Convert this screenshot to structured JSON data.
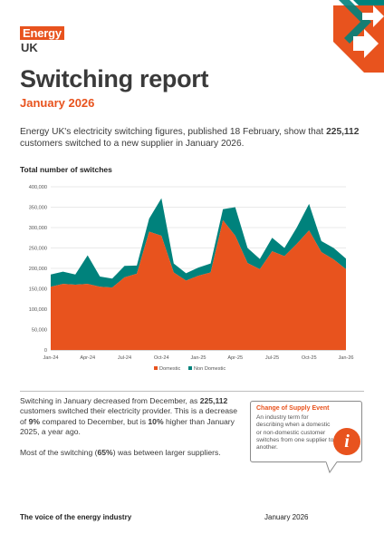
{
  "logo": {
    "top": "Energy",
    "bottom": "UK"
  },
  "title": "Switching report",
  "subtitle": "January 2026",
  "intro": {
    "p1": "Energy UK's electricity switching figures, published 18 February, show that ",
    "num": "225,112",
    "p2": " customers switched to a new supplier in January 2026."
  },
  "chart_title": "Total number of switches",
  "chart_data": {
    "type": "area",
    "stacked": true,
    "x_tick_labels": [
      "Jan-24",
      "Apr-24",
      "Jul-24",
      "Oct-24",
      "Jan-25",
      "Apr-25",
      "Jul-25",
      "Oct-25",
      "Jan-26"
    ],
    "y_tick_labels": [
      "0",
      "50,000",
      "100,000",
      "150,000",
      "200,000",
      "250,000",
      "300,000",
      "350,000",
      "400,000"
    ],
    "ylim": [
      0,
      400000
    ],
    "x": [
      "Jan-24",
      "Feb-24",
      "Mar-24",
      "Apr-24",
      "May-24",
      "Jun-24",
      "Jul-24",
      "Aug-24",
      "Sep-24",
      "Oct-24",
      "Nov-24",
      "Dec-24",
      "Jan-25",
      "Feb-25",
      "Mar-25",
      "Apr-25",
      "May-25",
      "Jun-25",
      "Jul-25",
      "Aug-25",
      "Sep-25",
      "Oct-25",
      "Nov-25",
      "Dec-25",
      "Jan-26"
    ],
    "series": [
      {
        "name": "Domestic",
        "color": "#e8531e",
        "values": [
          155000,
          162000,
          160000,
          162000,
          155000,
          153000,
          178000,
          187000,
          290000,
          280000,
          190000,
          170000,
          182000,
          190000,
          318000,
          280000,
          213000,
          198000,
          242000,
          230000,
          260000,
          293000,
          240000,
          222000,
          198000
        ]
      },
      {
        "name": "Non Domestic",
        "color": "#00827c",
        "values": [
          30000,
          30000,
          25000,
          70000,
          25000,
          22000,
          28000,
          20000,
          32000,
          92000,
          22000,
          18000,
          20000,
          22000,
          27000,
          70000,
          37000,
          25000,
          33000,
          20000,
          40000,
          65000,
          27000,
          28000,
          26000
        ]
      }
    ],
    "legend_position": "bottom",
    "grid": true
  },
  "body": {
    "p1a": "Switching in January decreased from December, as ",
    "p1num": "225,112",
    "p1b": " customers switched their electricity provider. This is a decrease of ",
    "p1pct1": "9%",
    "p1c": " compared to December, but is ",
    "p1pct2": "10%",
    "p1d": " higher than January 2025, a year ago.",
    "p2a": "Most of the switching (",
    "p2pct": "65%",
    "p2b": ") was between larger suppliers."
  },
  "callout": {
    "title": "Change of Supply Event",
    "text": "An industry term for describing when a domestic or non-domestic customer switches from one supplier to another.",
    "icon": "i"
  },
  "footer": {
    "tagline": "The voice of the energy industry",
    "date": "January 2026"
  },
  "colors": {
    "accent": "#e8531e",
    "teal": "#00827c"
  }
}
